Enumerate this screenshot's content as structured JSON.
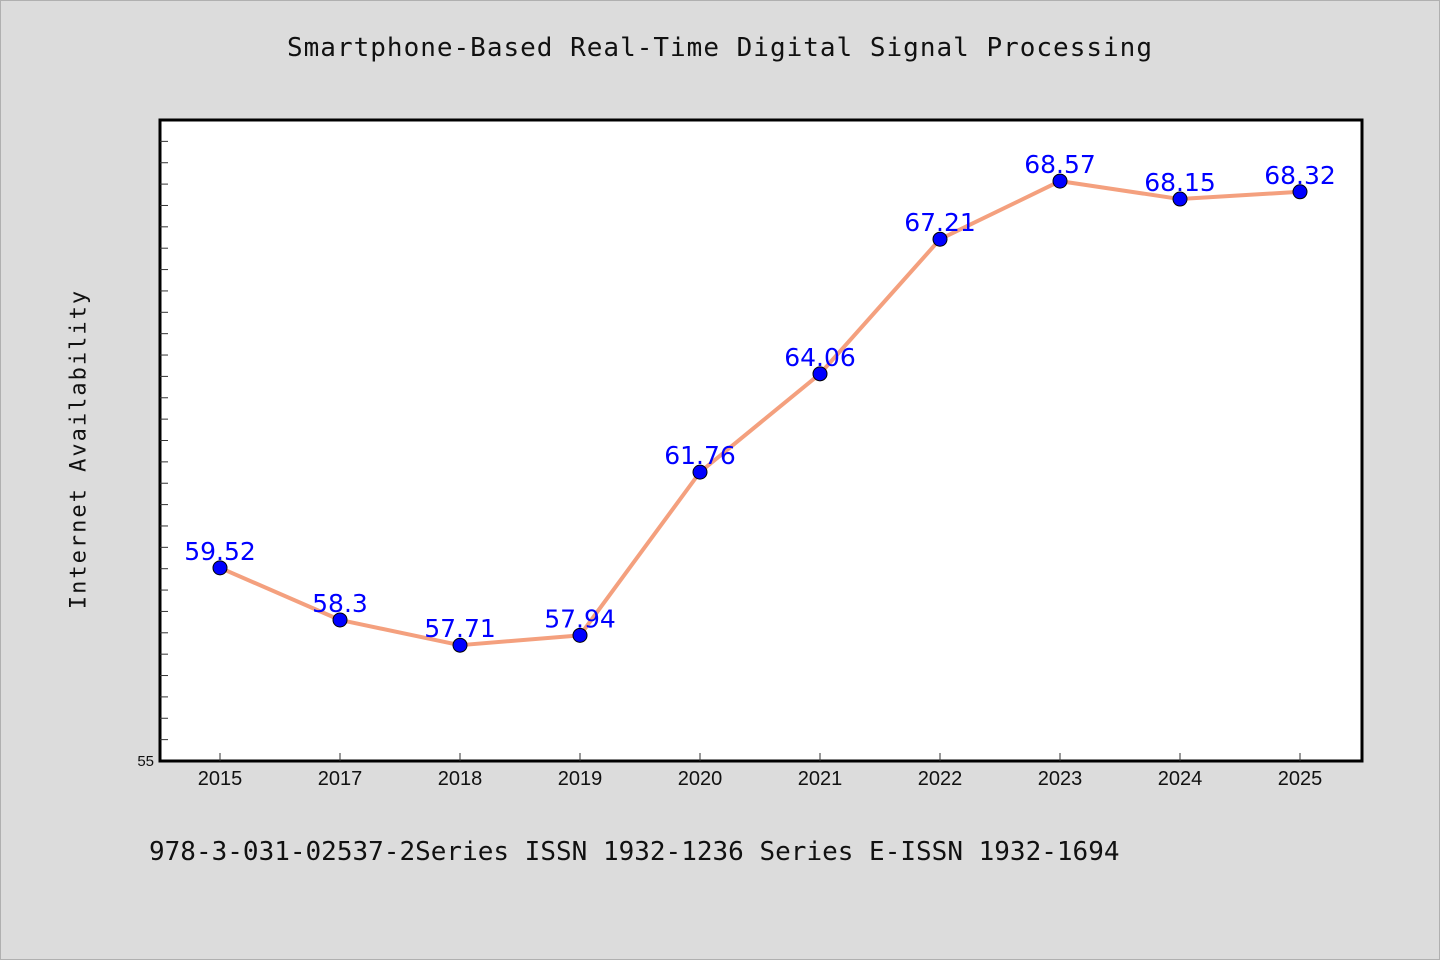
{
  "chart_data": {
    "type": "line",
    "title": "Smartphone-Based Real-Time Digital Signal Processing",
    "ylabel": "Internet Availability",
    "xlabel": "",
    "footer": "978-3-031-02537-2Series ISSN 1932-1236 Series E-ISSN 1932-1694",
    "categories": [
      "2015",
      "2017",
      "2018",
      "2019",
      "2020",
      "2021",
      "2022",
      "2023",
      "2024",
      "2025"
    ],
    "values": [
      59.52,
      58.3,
      57.71,
      57.94,
      61.76,
      64.06,
      67.21,
      68.57,
      68.15,
      68.32
    ],
    "data_labels": [
      "59.52",
      "58.3",
      "57.71",
      "57.94",
      "61.76",
      "64.06",
      "67.21",
      "68.57",
      "68.15",
      "68.32"
    ],
    "ylim": [
      55,
      70
    ],
    "y_tick_labels_shown": [
      "55"
    ],
    "grid": false,
    "legend": "none",
    "colors": {
      "line": "#f4a07e",
      "marker": "#0000ff",
      "data_label": "#0000ff",
      "background": "#dcdcdc",
      "plot_background": "#ffffff"
    }
  }
}
